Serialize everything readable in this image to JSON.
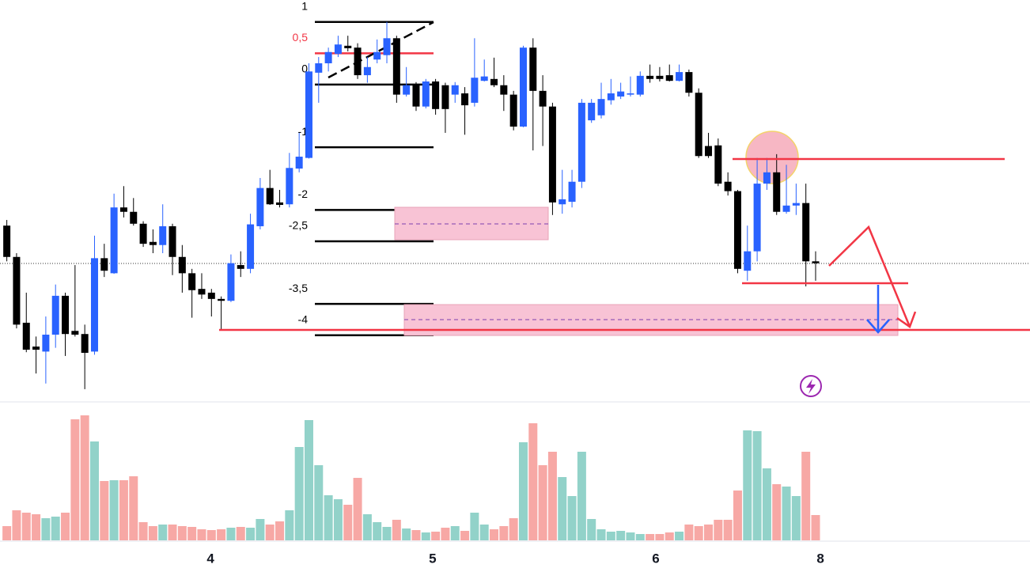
{
  "chart_data": {
    "type": "candlestick",
    "open": [
      -2.25,
      -2.75,
      -3.8,
      -4.18,
      -4.26,
      -3.99,
      -3.37,
      -3.93,
      -3.98,
      -4.26,
      -2.77,
      -3.01,
      -1.96,
      -2.03,
      -2.22,
      -2.51,
      -2.56,
      -2.26,
      -2.75,
      -3.01,
      -3.26,
      -3.32,
      -3.42,
      -3.45,
      -2.88,
      -2.94,
      -2.26,
      -1.65,
      -1.88,
      -1.91,
      -1.34,
      -1.17,
      0.19,
      0.34,
      0.49,
      0.62,
      0.59,
      0.15,
      0.4,
      0.47,
      0.74,
      -0.16,
      -0.01,
      -0.35,
      0.05,
      -0.01,
      -0.16,
      -0.14,
      -0.29,
      0.06,
      0.09,
      -0.01,
      -0.16,
      -0.67,
      0.59,
      -0.1,
      -0.35,
      -1.91,
      -1.87,
      -1.55,
      -0.57,
      -0.49,
      -0.25,
      -0.19,
      -0.16,
      -0.16,
      0.14,
      0.14,
      0.15,
      0.06,
      0.2,
      -0.13,
      -0.98,
      -0.97,
      -1.55,
      -1.7,
      -2.97,
      -2.66,
      -1.58,
      -1.4,
      -2.03,
      -1.93,
      -1.89,
      -2.82
    ],
    "high": [
      -2.16,
      -2.69,
      -3.32,
      -4.02,
      -3.7,
      -3.19,
      -3.32,
      -2.88,
      -3.83,
      -2.41,
      -2.54,
      -1.74,
      -1.62,
      -1.81,
      -2.18,
      -2.31,
      -1.91,
      -2.22,
      -2.56,
      -2.94,
      -3.01,
      -3.26,
      -3.38,
      -2.71,
      -2.66,
      -2.06,
      -1.49,
      -1.36,
      -1.68,
      -1.09,
      -0.77,
      0.34,
      0.44,
      0.59,
      0.78,
      0.78,
      0.66,
      0.44,
      0.72,
      1.0,
      0.78,
      0.28,
      0.04,
      0.09,
      0.09,
      0.03,
      0.04,
      -0.04,
      0.74,
      0.4,
      0.43,
      0.15,
      -0.1,
      0.62,
      0.74,
      0.15,
      -0.29,
      -1.36,
      -1.36,
      -0.23,
      -0.23,
      0.03,
      0.09,
      0.03,
      0.13,
      0.21,
      0.32,
      0.28,
      0.32,
      0.32,
      0.24,
      -0.06,
      -0.77,
      -0.86,
      -1.4,
      -1.68,
      -2.25,
      -1.17,
      -1.17,
      -1.11,
      -1.28,
      -1.58,
      -1.58,
      -2.66
    ],
    "low": [
      -2.82,
      -3.89,
      -4.27,
      -4.61,
      -4.77,
      -4.2,
      -4.33,
      -4.02,
      -4.86,
      -4.31,
      -3.07,
      -3.02,
      -2.12,
      -2.25,
      -2.59,
      -2.69,
      -2.69,
      -3.04,
      -3.32,
      -3.72,
      -3.42,
      -3.7,
      -3.91,
      -3.47,
      -3.07,
      -3.01,
      -2.31,
      -1.92,
      -1.96,
      -1.96,
      -1.4,
      -1.18,
      -0.29,
      0.21,
      0.44,
      0.53,
      0.09,
      0.03,
      0.34,
      0.34,
      -0.29,
      -0.19,
      -0.42,
      -0.38,
      -0.48,
      -0.77,
      -0.29,
      -0.8,
      -0.35,
      0.05,
      -0.04,
      -0.42,
      -0.73,
      -0.68,
      -1.05,
      -0.98,
      -2.08,
      -2.06,
      -1.96,
      -1.65,
      -0.61,
      -0.54,
      -0.32,
      -0.23,
      -0.19,
      -0.19,
      0.03,
      0.05,
      0.05,
      0.05,
      -0.19,
      -1.17,
      -1.17,
      -1.62,
      -1.77,
      -3.01,
      -3.13,
      -2.82,
      -1.68,
      -2.08,
      -2.06,
      -2.08,
      -3.22,
      -3.13
    ],
    "close": [
      -2.75,
      -3.83,
      -4.23,
      -4.23,
      -3.99,
      -3.37,
      -3.98,
      -3.99,
      -4.28,
      -2.77,
      -2.97,
      -1.96,
      -2.03,
      -2.22,
      -2.54,
      -2.56,
      -2.26,
      -2.75,
      -3.01,
      -3.28,
      -3.35,
      -3.42,
      -3.45,
      -2.85,
      -2.94,
      -2.23,
      -1.65,
      -1.91,
      -1.92,
      -1.33,
      -1.15,
      0.21,
      0.34,
      0.52,
      0.64,
      0.58,
      0.15,
      0.28,
      0.52,
      0.74,
      -0.16,
      -0.01,
      -0.35,
      0.05,
      -0.39,
      -0.39,
      -0.01,
      -0.33,
      0.11,
      0.13,
      -0.01,
      -0.16,
      -0.67,
      0.59,
      -0.1,
      -0.35,
      -1.88,
      -1.83,
      -1.55,
      -0.29,
      -0.29,
      -0.23,
      -0.14,
      -0.11,
      -0.14,
      0.14,
      0.09,
      0.09,
      0.06,
      0.2,
      -0.13,
      -1.14,
      -1.14,
      -1.58,
      -1.7,
      -2.94,
      -2.66,
      -1.58,
      -1.4,
      -2.03,
      -1.93,
      -1.89,
      -2.82,
      -2.85
    ],
    "volume": [
      18,
      38,
      35,
      33,
      28,
      30,
      35,
      153,
      158,
      125,
      75,
      76,
      76,
      81,
      23,
      18,
      20,
      20,
      18,
      17,
      14,
      13,
      14,
      16,
      17,
      16,
      27,
      20,
      24,
      38,
      118,
      152,
      95,
      57,
      52,
      45,
      79,
      33,
      23,
      17,
      26,
      15,
      13,
      10,
      11,
      16,
      18,
      12,
      35,
      20,
      14,
      18,
      28,
      124,
      148,
      95,
      112,
      80,
      56,
      112,
      27,
      14,
      11,
      12,
      10,
      8,
      8,
      8,
      10,
      11,
      20,
      18,
      20,
      26,
      26,
      63,
      139,
      138,
      91,
      71,
      68,
      56,
      112,
      32
    ],
    "up_color": "#2962ff",
    "down_color": "#000000",
    "volume_up_color": "#92d2c9",
    "volume_down_color": "#f7a8a5",
    "ylim": [
      -5,
      1.35
    ],
    "volume_ylim": [
      0,
      173
    ],
    "xlim": [
      -0.7,
      105
    ],
    "xticks": [
      {
        "value": 20.9,
        "label": "4"
      },
      {
        "value": 43.7,
        "label": "5"
      },
      {
        "value": 66.6,
        "label": "6"
      },
      {
        "value": 83.5,
        "label": "8"
      }
    ],
    "fib_levels": [
      1,
      {
        "value": 0.5,
        "label": "0,5"
      },
      0,
      -1,
      -2,
      {
        "value": -2.5,
        "label": "-2,5"
      },
      {
        "value": -3.5,
        "label": "-3,5"
      },
      -4
    ],
    "fib_colors": [
      "#000000",
      "#f23645",
      "#000000",
      "#000000",
      "#000000",
      "#000000",
      "#000000",
      "#000000"
    ]
  }
}
